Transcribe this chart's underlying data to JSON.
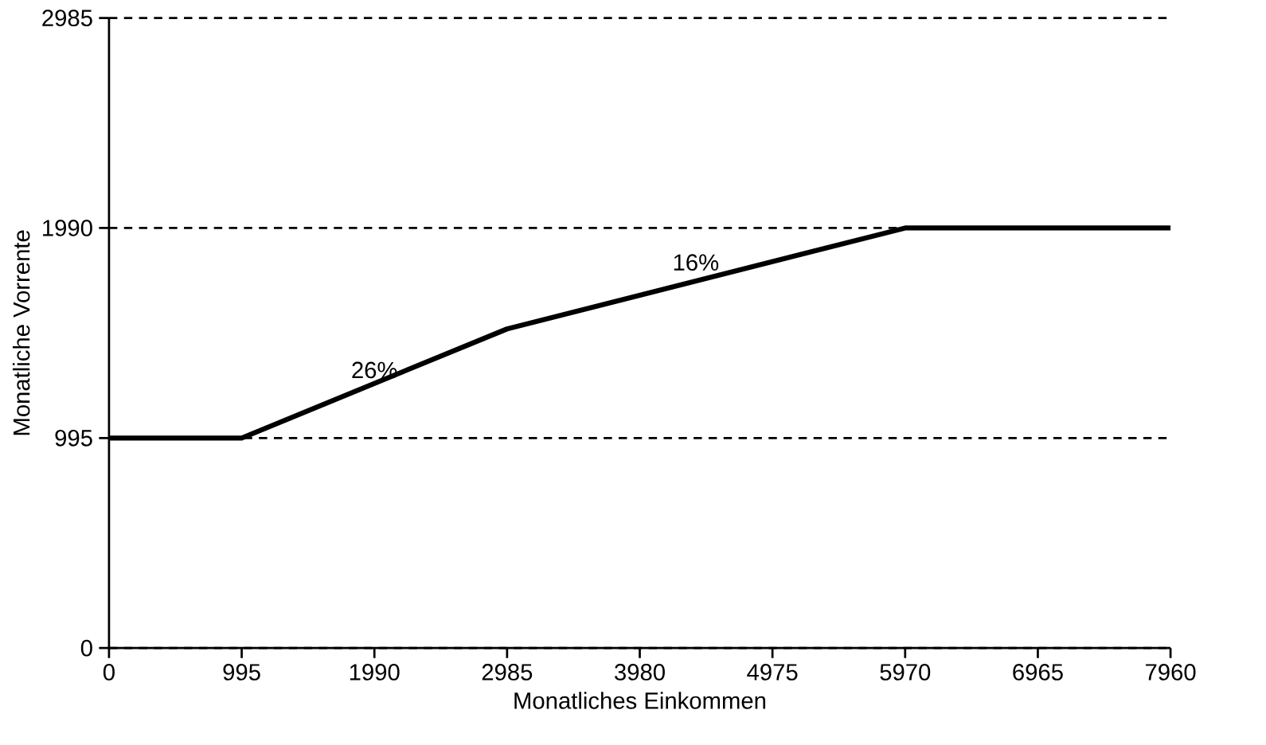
{
  "chart_data": {
    "type": "line",
    "xlabel": "Monatliches Einkommen",
    "ylabel": "Monatliche Vorrente",
    "x": [
      0,
      995,
      2985,
      5970,
      7960
    ],
    "series": [
      {
        "color": "#000000",
        "values": [
          995,
          995,
          1512,
          1990,
          1990
        ]
      }
    ],
    "xlim": [
      0,
      7960
    ],
    "xticks": [
      0,
      995,
      1990,
      2985,
      3980,
      4975,
      5970,
      6965,
      7960
    ],
    "ylim": [
      0,
      2985
    ],
    "yticks": [
      0,
      995,
      1990,
      2985
    ],
    "grid": "y",
    "line_style": "solid",
    "marker": "none",
    "annotations": [
      {
        "text": "26%",
        "x": 1990,
        "y": 1250
      },
      {
        "text": "16%",
        "x": 4400,
        "y": 1760
      }
    ]
  }
}
